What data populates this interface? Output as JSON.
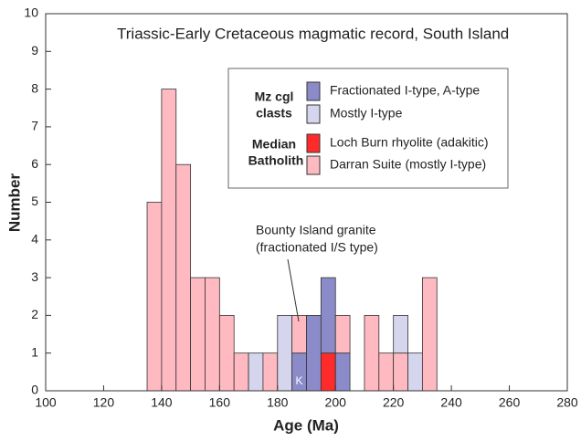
{
  "chart_data": {
    "type": "histogram",
    "title": "Triassic-Early Cretaceous magmatic record, South Island",
    "x_label": "Age (Ma)",
    "y_label": "Number",
    "bins": [
      135,
      140,
      145,
      150,
      155,
      160,
      165,
      170,
      175,
      180,
      185,
      190,
      195,
      200,
      205,
      210,
      215,
      220,
      225,
      230,
      235
    ],
    "series": [
      {
        "name": "Fractionated I-type, A-type",
        "color": "#8b8bc9",
        "values": [
          0,
          0,
          0,
          0,
          0,
          0,
          0,
          0,
          0,
          0,
          1,
          2,
          2,
          1,
          0,
          0,
          0,
          0,
          0,
          0
        ]
      },
      {
        "name": "Mostly I-type",
        "color": "#d5d5ee",
        "values": [
          0,
          0,
          0,
          0,
          0,
          0,
          0,
          1,
          0,
          2,
          0,
          0,
          0,
          0,
          0,
          0,
          0,
          1,
          1,
          0
        ]
      },
      {
        "name": "Loch Burn rhyolite (adakitic)",
        "color": "#ff2b2b",
        "values": [
          0,
          0,
          0,
          0,
          0,
          0,
          0,
          0,
          0,
          0,
          0,
          0,
          1,
          0,
          0,
          0,
          0,
          0,
          0,
          0
        ]
      },
      {
        "name": "Darran Suite (mostly I-type)",
        "color": "#ffb9c1",
        "values": [
          5,
          8,
          6,
          3,
          3,
          2,
          1,
          0,
          1,
          0,
          1,
          0,
          0,
          1,
          0,
          2,
          1,
          1,
          0,
          3
        ]
      }
    ],
    "legend_groups": [
      {
        "label": [
          "Mz cgl",
          "clasts"
        ]
      },
      {
        "label": [
          "Median",
          "Batholith"
        ]
      }
    ],
    "annotations": [
      {
        "text": [
          "Bounty Island granite",
          "(fractionated I/S type)"
        ]
      },
      {
        "text": "K"
      }
    ],
    "xlim": [
      100,
      280
    ],
    "xticks": [
      100,
      120,
      140,
      160,
      180,
      200,
      220,
      240,
      260,
      280
    ],
    "ylim": [
      0,
      10
    ],
    "yticks": [
      0,
      1,
      2,
      3,
      4,
      5,
      6,
      7,
      8,
      9,
      10
    ]
  }
}
